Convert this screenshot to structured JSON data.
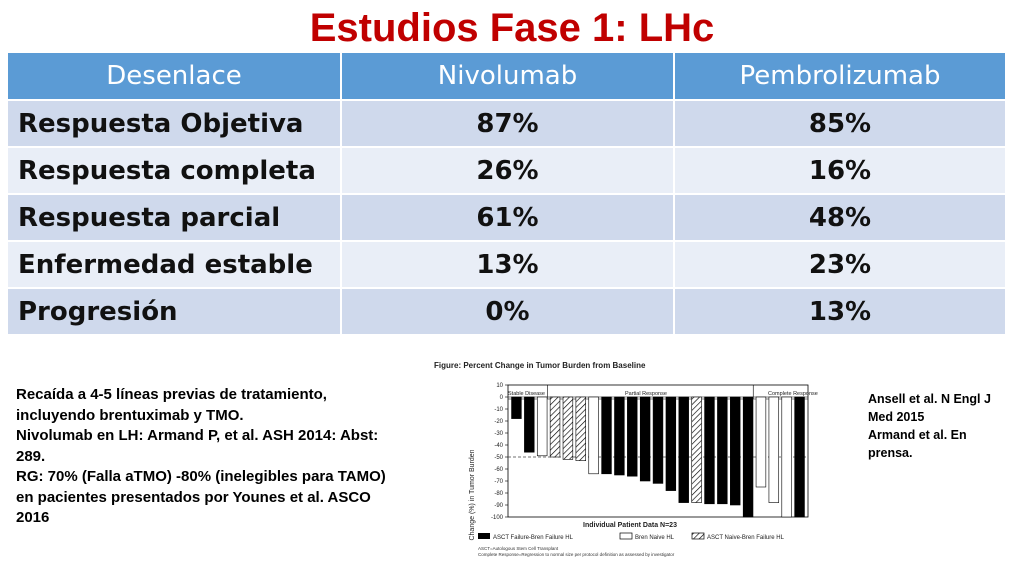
{
  "slide": {
    "title": "Estudios Fase 1: LHc"
  },
  "table": {
    "headers": [
      "Desenlace",
      "Nivolumab",
      "Pembrolizumab"
    ],
    "rows": [
      [
        "Respuesta Objetiva",
        "87%",
        "85%"
      ],
      [
        "Respuesta completa",
        "26%",
        "16%"
      ],
      [
        "Respuesta parcial",
        "61%",
        "48%"
      ],
      [
        "Enfermedad estable",
        "13%",
        "23%"
      ],
      [
        "Progresión",
        "0%",
        "13%"
      ]
    ]
  },
  "notes": [
    "Recaída a 4-5 líneas previas de tratamiento, incluyendo brentuximab y TMO.",
    "Nivolumab en LH: Armand P, et al. ASH 2014: Abst: 289.",
    "RG: 70% (Falla aTMO) -80% (inelegibles para TAMO) en pacientes presentados por Younes et al. ASCO 2016"
  ],
  "references": [
    "Ansell et al. N Engl J Med 2015",
    "Armand et al. En prensa."
  ],
  "chart_data": {
    "type": "bar",
    "title": "Figure: Percent Change in Tumor Burden from Baseline",
    "xlabel": "Individual Patient Data N=23",
    "ylabel": "Change (%) in Tumor Burden",
    "ylim": [
      -100,
      10
    ],
    "yticks": [
      10,
      0,
      -10,
      -20,
      -30,
      -40,
      -50,
      -60,
      -70,
      -80,
      -90,
      -100
    ],
    "reference_line": -50,
    "groups": [
      "Stable Disease",
      "Partial Response",
      "Complete Response"
    ],
    "legend": [
      "ASCT Failure-Bren Failure HL",
      "Bren Naive HL",
      "ASCT Naive-Bren Failure HL"
    ],
    "footnotes": [
      "ASCT=Autologous Stem Cell Transplant",
      "Complete Response=Regression to normal size per protocol definition as assessed by investigator"
    ],
    "colors": {
      "ASCT Failure-Bren Failure HL": "#000000",
      "Bren Naive HL": "#ffffff",
      "ASCT Naive-Bren Failure HL": "hatched"
    },
    "bars": [
      {
        "value": -18,
        "group": "ASCT Failure-Bren Failure HL"
      },
      {
        "value": -46,
        "group": "ASCT Failure-Bren Failure HL"
      },
      {
        "value": -49,
        "group": "Bren Naive HL"
      },
      {
        "value": -50,
        "group": "ASCT Naive-Bren Failure HL"
      },
      {
        "value": -52,
        "group": "ASCT Naive-Bren Failure HL"
      },
      {
        "value": -53,
        "group": "ASCT Naive-Bren Failure HL"
      },
      {
        "value": -64,
        "group": "Bren Naive HL"
      },
      {
        "value": -64,
        "group": "ASCT Failure-Bren Failure HL"
      },
      {
        "value": -65,
        "group": "ASCT Failure-Bren Failure HL"
      },
      {
        "value": -66,
        "group": "ASCT Failure-Bren Failure HL"
      },
      {
        "value": -70,
        "group": "ASCT Failure-Bren Failure HL"
      },
      {
        "value": -72,
        "group": "ASCT Failure-Bren Failure HL"
      },
      {
        "value": -78,
        "group": "ASCT Failure-Bren Failure HL"
      },
      {
        "value": -88,
        "group": "ASCT Failure-Bren Failure HL"
      },
      {
        "value": -88,
        "group": "ASCT Naive-Bren Failure HL"
      },
      {
        "value": -89,
        "group": "ASCT Failure-Bren Failure HL"
      },
      {
        "value": -89,
        "group": "ASCT Failure-Bren Failure HL"
      },
      {
        "value": -90,
        "group": "ASCT Failure-Bren Failure HL"
      },
      {
        "value": -100,
        "group": "ASCT Failure-Bren Failure HL"
      },
      {
        "value": -75,
        "group": "Bren Naive HL"
      },
      {
        "value": -88,
        "group": "Bren Naive HL"
      },
      {
        "value": -100,
        "group": "Bren Naive HL"
      },
      {
        "value": -100,
        "group": "ASCT Failure-Bren Failure HL"
      }
    ]
  }
}
